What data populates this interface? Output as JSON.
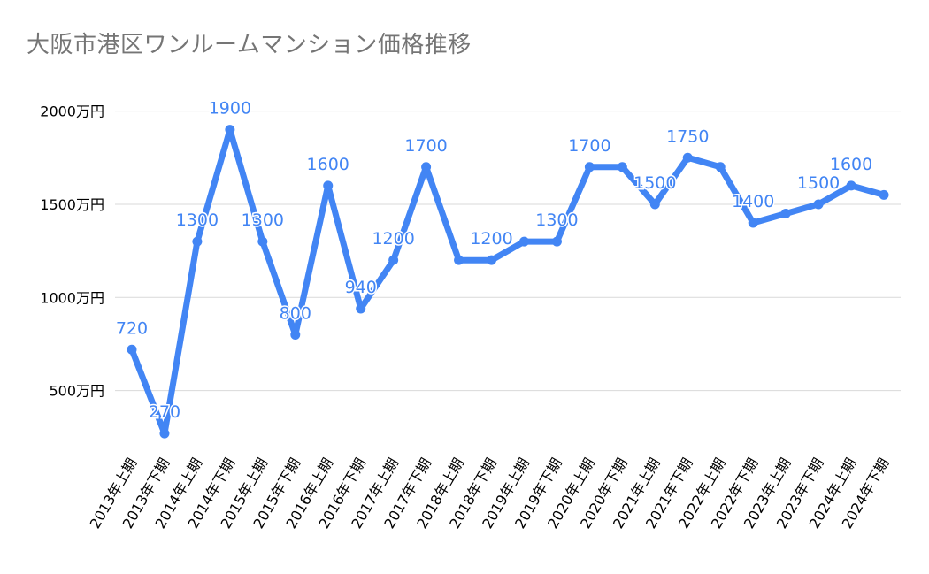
{
  "chart_data": {
    "type": "line",
    "title": "大阪市港区ワンルームマンション価格推移",
    "xlabel": "",
    "ylabel": "",
    "color": "#4285f4",
    "grid": true,
    "ylim": [
      0,
      2000
    ],
    "yticks": [
      {
        "value": 500,
        "label": "500万円"
      },
      {
        "value": 1000,
        "label": "1000万円"
      },
      {
        "value": 1500,
        "label": "1500万円"
      },
      {
        "value": 2000,
        "label": "2000万円"
      }
    ],
    "categories": [
      "2013年上期",
      "2013年下期",
      "2014年上期",
      "2014年下期",
      "2015年上期",
      "2015年下期",
      "2016年上期",
      "2016年下期",
      "2017年上期",
      "2017年下期",
      "2018年上期",
      "2018年下期",
      "2019年上期",
      "2019年下期",
      "2020年上期",
      "2020年下期",
      "2021年上期",
      "2021年下期",
      "2022年上期",
      "2022年下期",
      "2023年上期",
      "2023年下期",
      "2024年上期",
      "2024年下期"
    ],
    "values": [
      720,
      270,
      1300,
      1900,
      1300,
      800,
      1600,
      940,
      1200,
      1700,
      1200,
      1200,
      1300,
      1300,
      1700,
      1700,
      1500,
      1750,
      1700,
      1400,
      1450,
      1500,
      1600,
      1550
    ],
    "data_labels": [
      "720",
      "270",
      "1300",
      "1900",
      "1300",
      "800",
      "1600",
      "940",
      "1200",
      "1700",
      "",
      "1200",
      "",
      "1300",
      "1700",
      "",
      "1500",
      "1750",
      "",
      "1400",
      "",
      "1500",
      "1600",
      ""
    ]
  }
}
